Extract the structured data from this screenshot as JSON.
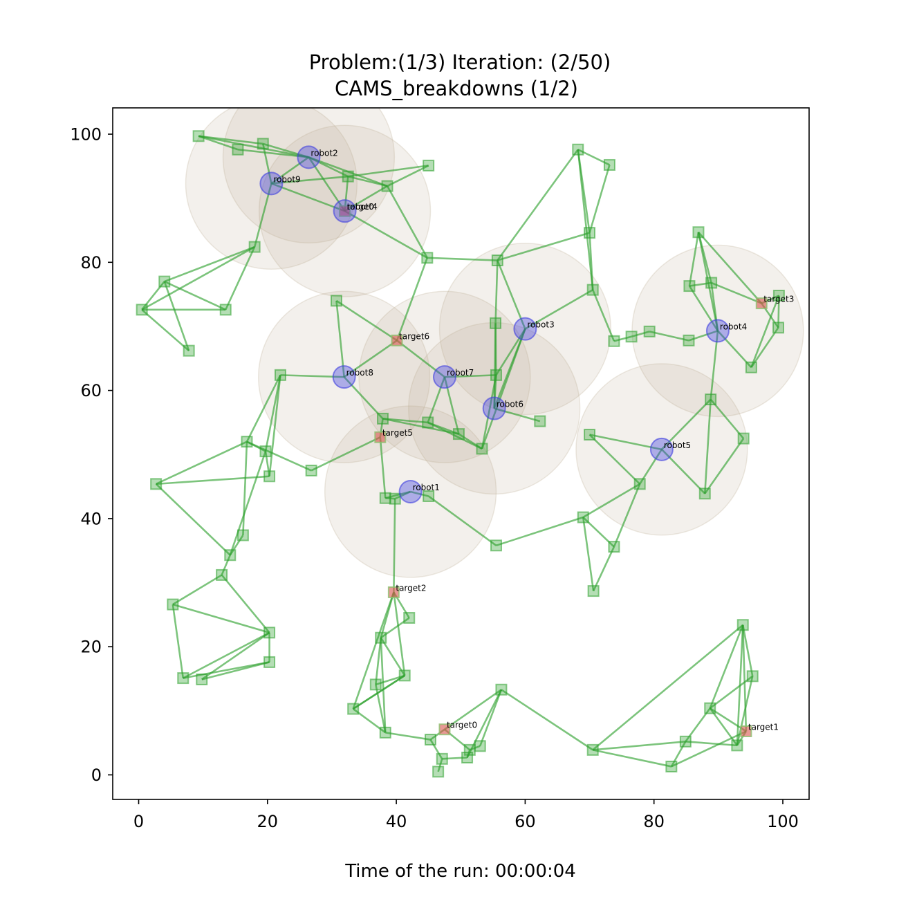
{
  "chart_data": {
    "type": "scatter",
    "title": [
      "Problem:(1/3)   Iteration: (2/50)",
      "CAMS_breakdowns (1/2)"
    ],
    "footer": "Time of the run: 00:00:04",
    "xlim": [
      -4,
      104
    ],
    "ylim": [
      -4,
      104
    ],
    "xticks": [
      0,
      20,
      40,
      60,
      80,
      100
    ],
    "yticks": [
      0,
      20,
      40,
      60,
      80,
      100
    ],
    "grid": false,
    "colors": {
      "edge": "#2ca02c",
      "node_fill": "#2ca02c",
      "robot_fill": "#3d3de0",
      "target_fill": "#d9534f",
      "range_fill": "#b8a98c"
    },
    "robot_range": 13.3,
    "nodes": [
      [
        9.3,
        99.7
      ],
      [
        15.4,
        97.6
      ],
      [
        19.3,
        98.5
      ],
      [
        32.5,
        93.4
      ],
      [
        38.6,
        91.9
      ],
      [
        45.0,
        95.1
      ],
      [
        18.0,
        82.4
      ],
      [
        4.0,
        77.0
      ],
      [
        0.5,
        72.6
      ],
      [
        13.5,
        72.6
      ],
      [
        7.8,
        66.2
      ],
      [
        44.8,
        80.7
      ],
      [
        55.7,
        80.3
      ],
      [
        68.2,
        97.6
      ],
      [
        73.1,
        95.2
      ],
      [
        70.0,
        84.6
      ],
      [
        30.7,
        74.0
      ],
      [
        37.9,
        55.6
      ],
      [
        44.9,
        55.0
      ],
      [
        49.7,
        53.2
      ],
      [
        53.3,
        50.9
      ],
      [
        55.5,
        62.4
      ],
      [
        55.4,
        70.5
      ],
      [
        62.3,
        55.2
      ],
      [
        22.0,
        62.4
      ],
      [
        16.8,
        52.0
      ],
      [
        19.7,
        50.5
      ],
      [
        20.3,
        46.6
      ],
      [
        26.8,
        47.5
      ],
      [
        2.7,
        45.4
      ],
      [
        16.2,
        37.4
      ],
      [
        14.2,
        34.3
      ],
      [
        12.9,
        31.2
      ],
      [
        5.3,
        26.6
      ],
      [
        20.3,
        22.2
      ],
      [
        20.3,
        17.6
      ],
      [
        6.9,
        15.1
      ],
      [
        9.8,
        14.9
      ],
      [
        38.3,
        43.2
      ],
      [
        39.8,
        43.1
      ],
      [
        45.0,
        43.5
      ],
      [
        55.5,
        35.8
      ],
      [
        69.0,
        40.2
      ],
      [
        70.6,
        28.7
      ],
      [
        73.8,
        35.6
      ],
      [
        70.0,
        53.1
      ],
      [
        70.5,
        75.7
      ],
      [
        73.8,
        67.7
      ],
      [
        76.5,
        68.4
      ],
      [
        79.3,
        69.2
      ],
      [
        85.4,
        67.8
      ],
      [
        85.5,
        76.3
      ],
      [
        86.9,
        84.7
      ],
      [
        88.9,
        76.8
      ],
      [
        99.4,
        74.8
      ],
      [
        99.3,
        69.8
      ],
      [
        95.1,
        63.6
      ],
      [
        88.8,
        58.6
      ],
      [
        93.9,
        52.5
      ],
      [
        77.8,
        45.4
      ],
      [
        87.9,
        43.9
      ],
      [
        42.0,
        24.5
      ],
      [
        37.6,
        21.4
      ],
      [
        41.3,
        15.5
      ],
      [
        36.8,
        14.1
      ],
      [
        33.3,
        10.3
      ],
      [
        38.3,
        6.6
      ],
      [
        45.3,
        5.5
      ],
      [
        47.1,
        2.5
      ],
      [
        46.5,
        0.5
      ],
      [
        51.0,
        2.7
      ],
      [
        51.4,
        3.9
      ],
      [
        53.0,
        4.5
      ],
      [
        56.3,
        13.3
      ],
      [
        70.5,
        3.9
      ],
      [
        82.7,
        1.3
      ],
      [
        84.9,
        5.2
      ],
      [
        88.7,
        10.4
      ],
      [
        92.9,
        4.6
      ],
      [
        93.8,
        23.4
      ],
      [
        95.3,
        15.4
      ]
    ],
    "robots": [
      {
        "name": "robot1",
        "x": 42.2,
        "y": 44.2
      },
      {
        "name": "robot2",
        "x": 26.4,
        "y": 96.4
      },
      {
        "name": "robot3",
        "x": 60.0,
        "y": 69.6
      },
      {
        "name": "robot4",
        "x": 89.9,
        "y": 69.3
      },
      {
        "name": "robot5",
        "x": 81.2,
        "y": 50.8
      },
      {
        "name": "robot6",
        "x": 55.2,
        "y": 57.2
      },
      {
        "name": "robot7",
        "x": 47.5,
        "y": 62.1
      },
      {
        "name": "robot8",
        "x": 31.9,
        "y": 62.1
      },
      {
        "name": "robot9",
        "x": 20.6,
        "y": 92.3
      },
      {
        "name": "robot0",
        "x": 32.0,
        "y": 88.0
      }
    ],
    "targets": [
      {
        "name": "target0",
        "x": 47.5,
        "y": 7.1
      },
      {
        "name": "target1",
        "x": 94.3,
        "y": 6.8
      },
      {
        "name": "target2",
        "x": 39.6,
        "y": 28.5
      },
      {
        "name": "target3",
        "x": 96.7,
        "y": 73.6
      },
      {
        "name": "target4",
        "x": 32.0,
        "y": 88.0
      },
      {
        "name": "target5",
        "x": 37.5,
        "y": 52.7
      },
      {
        "name": "target6",
        "x": 40.1,
        "y": 67.8
      }
    ],
    "edges": [
      [
        "n0",
        "n1"
      ],
      [
        "n0",
        "n2"
      ],
      [
        "n0",
        "robot2"
      ],
      [
        "n1",
        "robot2"
      ],
      [
        "n2",
        "robot2"
      ],
      [
        "n2",
        "robot9"
      ],
      [
        "robot2",
        "robot9"
      ],
      [
        "robot2",
        "n3"
      ],
      [
        "robot2",
        "n4"
      ],
      [
        "robot2",
        "robot0"
      ],
      [
        "robot9",
        "n3"
      ],
      [
        "robot9",
        "robot0"
      ],
      [
        "robot9",
        "n6"
      ],
      [
        "n3",
        "n4"
      ],
      [
        "n3",
        "n5"
      ],
      [
        "n3",
        "robot0"
      ],
      [
        "n4",
        "n5"
      ],
      [
        "n4",
        "robot0"
      ],
      [
        "n4",
        "n11"
      ],
      [
        "robot0",
        "n11"
      ],
      [
        "n6",
        "n7"
      ],
      [
        "n6",
        "n8"
      ],
      [
        "n6",
        "n9"
      ],
      [
        "n7",
        "n8"
      ],
      [
        "n7",
        "n9"
      ],
      [
        "n7",
        "n10"
      ],
      [
        "n8",
        "n9"
      ],
      [
        "n8",
        "n10"
      ],
      [
        "n11",
        "n12"
      ],
      [
        "n11",
        "target6"
      ],
      [
        "n12",
        "n13"
      ],
      [
        "n12",
        "n15"
      ],
      [
        "n12",
        "n22"
      ],
      [
        "n12",
        "robot3"
      ],
      [
        "n13",
        "n14"
      ],
      [
        "n13",
        "n15"
      ],
      [
        "n13",
        "n46"
      ],
      [
        "n14",
        "n15"
      ],
      [
        "n15",
        "n46"
      ],
      [
        "n16",
        "target6"
      ],
      [
        "n16",
        "robot8"
      ],
      [
        "target6",
        "robot7"
      ],
      [
        "target6",
        "robot8"
      ],
      [
        "robot8",
        "n17"
      ],
      [
        "robot8",
        "n24"
      ],
      [
        "robot7",
        "n18"
      ],
      [
        "robot7",
        "n19"
      ],
      [
        "robot7",
        "n21"
      ],
      [
        "n21",
        "robot3"
      ],
      [
        "n22",
        "n21"
      ],
      [
        "n22",
        "robot6"
      ],
      [
        "robot3",
        "robot6"
      ],
      [
        "robot3",
        "n20"
      ],
      [
        "robot3",
        "n46"
      ],
      [
        "n21",
        "robot6"
      ],
      [
        "n21",
        "n20"
      ],
      [
        "robot6",
        "n23"
      ],
      [
        "n18",
        "n19"
      ],
      [
        "n18",
        "n20"
      ],
      [
        "n19",
        "n20"
      ],
      [
        "n17",
        "n18"
      ],
      [
        "n17",
        "target5"
      ],
      [
        "target5",
        "n28"
      ],
      [
        "target5",
        "n38"
      ],
      [
        "n17",
        "n19"
      ],
      [
        "n24",
        "n25"
      ],
      [
        "n24",
        "n26"
      ],
      [
        "n24",
        "n27"
      ],
      [
        "n25",
        "n26"
      ],
      [
        "n25",
        "n28"
      ],
      [
        "n25",
        "n29"
      ],
      [
        "n25",
        "n30"
      ],
      [
        "n26",
        "n27"
      ],
      [
        "n26",
        "n31"
      ],
      [
        "n29",
        "n27"
      ],
      [
        "n29",
        "n31"
      ],
      [
        "n30",
        "n31"
      ],
      [
        "n31",
        "n32"
      ],
      [
        "n32",
        "n33"
      ],
      [
        "n32",
        "n34"
      ],
      [
        "n33",
        "n34"
      ],
      [
        "n33",
        "n36"
      ],
      [
        "n34",
        "n35"
      ],
      [
        "n34",
        "n36"
      ],
      [
        "n34",
        "n37"
      ],
      [
        "n35",
        "n36"
      ],
      [
        "n35",
        "n37"
      ],
      [
        "n38",
        "n39"
      ],
      [
        "n38",
        "robot1"
      ],
      [
        "n39",
        "robot1"
      ],
      [
        "n39",
        "target2"
      ],
      [
        "robot1",
        "n40"
      ],
      [
        "n40",
        "n41"
      ],
      [
        "n41",
        "n42"
      ],
      [
        "n42",
        "n43"
      ],
      [
        "n42",
        "n44"
      ],
      [
        "n43",
        "n44"
      ],
      [
        "n42",
        "n59"
      ],
      [
        "n44",
        "n59"
      ],
      [
        "n59",
        "robot5"
      ],
      [
        "n59",
        "n45"
      ],
      [
        "n45",
        "robot5"
      ],
      [
        "robot5",
        "n57"
      ],
      [
        "robot5",
        "n60"
      ],
      [
        "n57",
        "n60"
      ],
      [
        "n57",
        "n58"
      ],
      [
        "n58",
        "n60"
      ],
      [
        "n57",
        "robot4"
      ],
      [
        "n46",
        "n47"
      ],
      [
        "n47",
        "n48"
      ],
      [
        "n48",
        "n49"
      ],
      [
        "n49",
        "n50"
      ],
      [
        "n50",
        "robot4"
      ],
      [
        "robot4",
        "n51"
      ],
      [
        "robot4",
        "n52"
      ],
      [
        "robot4",
        "n53"
      ],
      [
        "robot4",
        "n56"
      ],
      [
        "n51",
        "n52"
      ],
      [
        "n51",
        "n53"
      ],
      [
        "n52",
        "n53"
      ],
      [
        "n52",
        "target3"
      ],
      [
        "n53",
        "target3"
      ],
      [
        "target3",
        "n54"
      ],
      [
        "target3",
        "n55"
      ],
      [
        "n54",
        "n55"
      ],
      [
        "n55",
        "n56"
      ],
      [
        "n54",
        "n56"
      ],
      [
        "target2",
        "n61"
      ],
      [
        "target2",
        "n62"
      ],
      [
        "target2",
        "n63"
      ],
      [
        "target2",
        "n65"
      ],
      [
        "n61",
        "n62"
      ],
      [
        "n62",
        "n63"
      ],
      [
        "n62",
        "n64"
      ],
      [
        "n62",
        "n66"
      ],
      [
        "n63",
        "n64"
      ],
      [
        "n63",
        "n65"
      ],
      [
        "n64",
        "n66"
      ],
      [
        "n65",
        "n66"
      ],
      [
        "n65",
        "n63"
      ],
      [
        "n66",
        "n67"
      ],
      [
        "n67",
        "target0"
      ],
      [
        "n67",
        "n68"
      ],
      [
        "n68",
        "n69"
      ],
      [
        "n68",
        "n70"
      ],
      [
        "target0",
        "n73"
      ],
      [
        "target0",
        "n71"
      ],
      [
        "n70",
        "n71"
      ],
      [
        "n71",
        "n72"
      ],
      [
        "n72",
        "n73"
      ],
      [
        "n70",
        "n73"
      ],
      [
        "n73",
        "n74"
      ],
      [
        "n74",
        "n75"
      ],
      [
        "n74",
        "n76"
      ],
      [
        "n74",
        "n79"
      ],
      [
        "n75",
        "n76"
      ],
      [
        "n75",
        "target1"
      ],
      [
        "n76",
        "n77"
      ],
      [
        "n77",
        "target1"
      ],
      [
        "n77",
        "n78"
      ],
      [
        "n78",
        "target1"
      ],
      [
        "n79",
        "n77"
      ],
      [
        "n79",
        "target1"
      ],
      [
        "n79",
        "n78"
      ],
      [
        "n80",
        "n77"
      ],
      [
        "n80",
        "n79"
      ],
      [
        "n78",
        "n80"
      ],
      [
        "n76",
        "n78"
      ]
    ]
  }
}
